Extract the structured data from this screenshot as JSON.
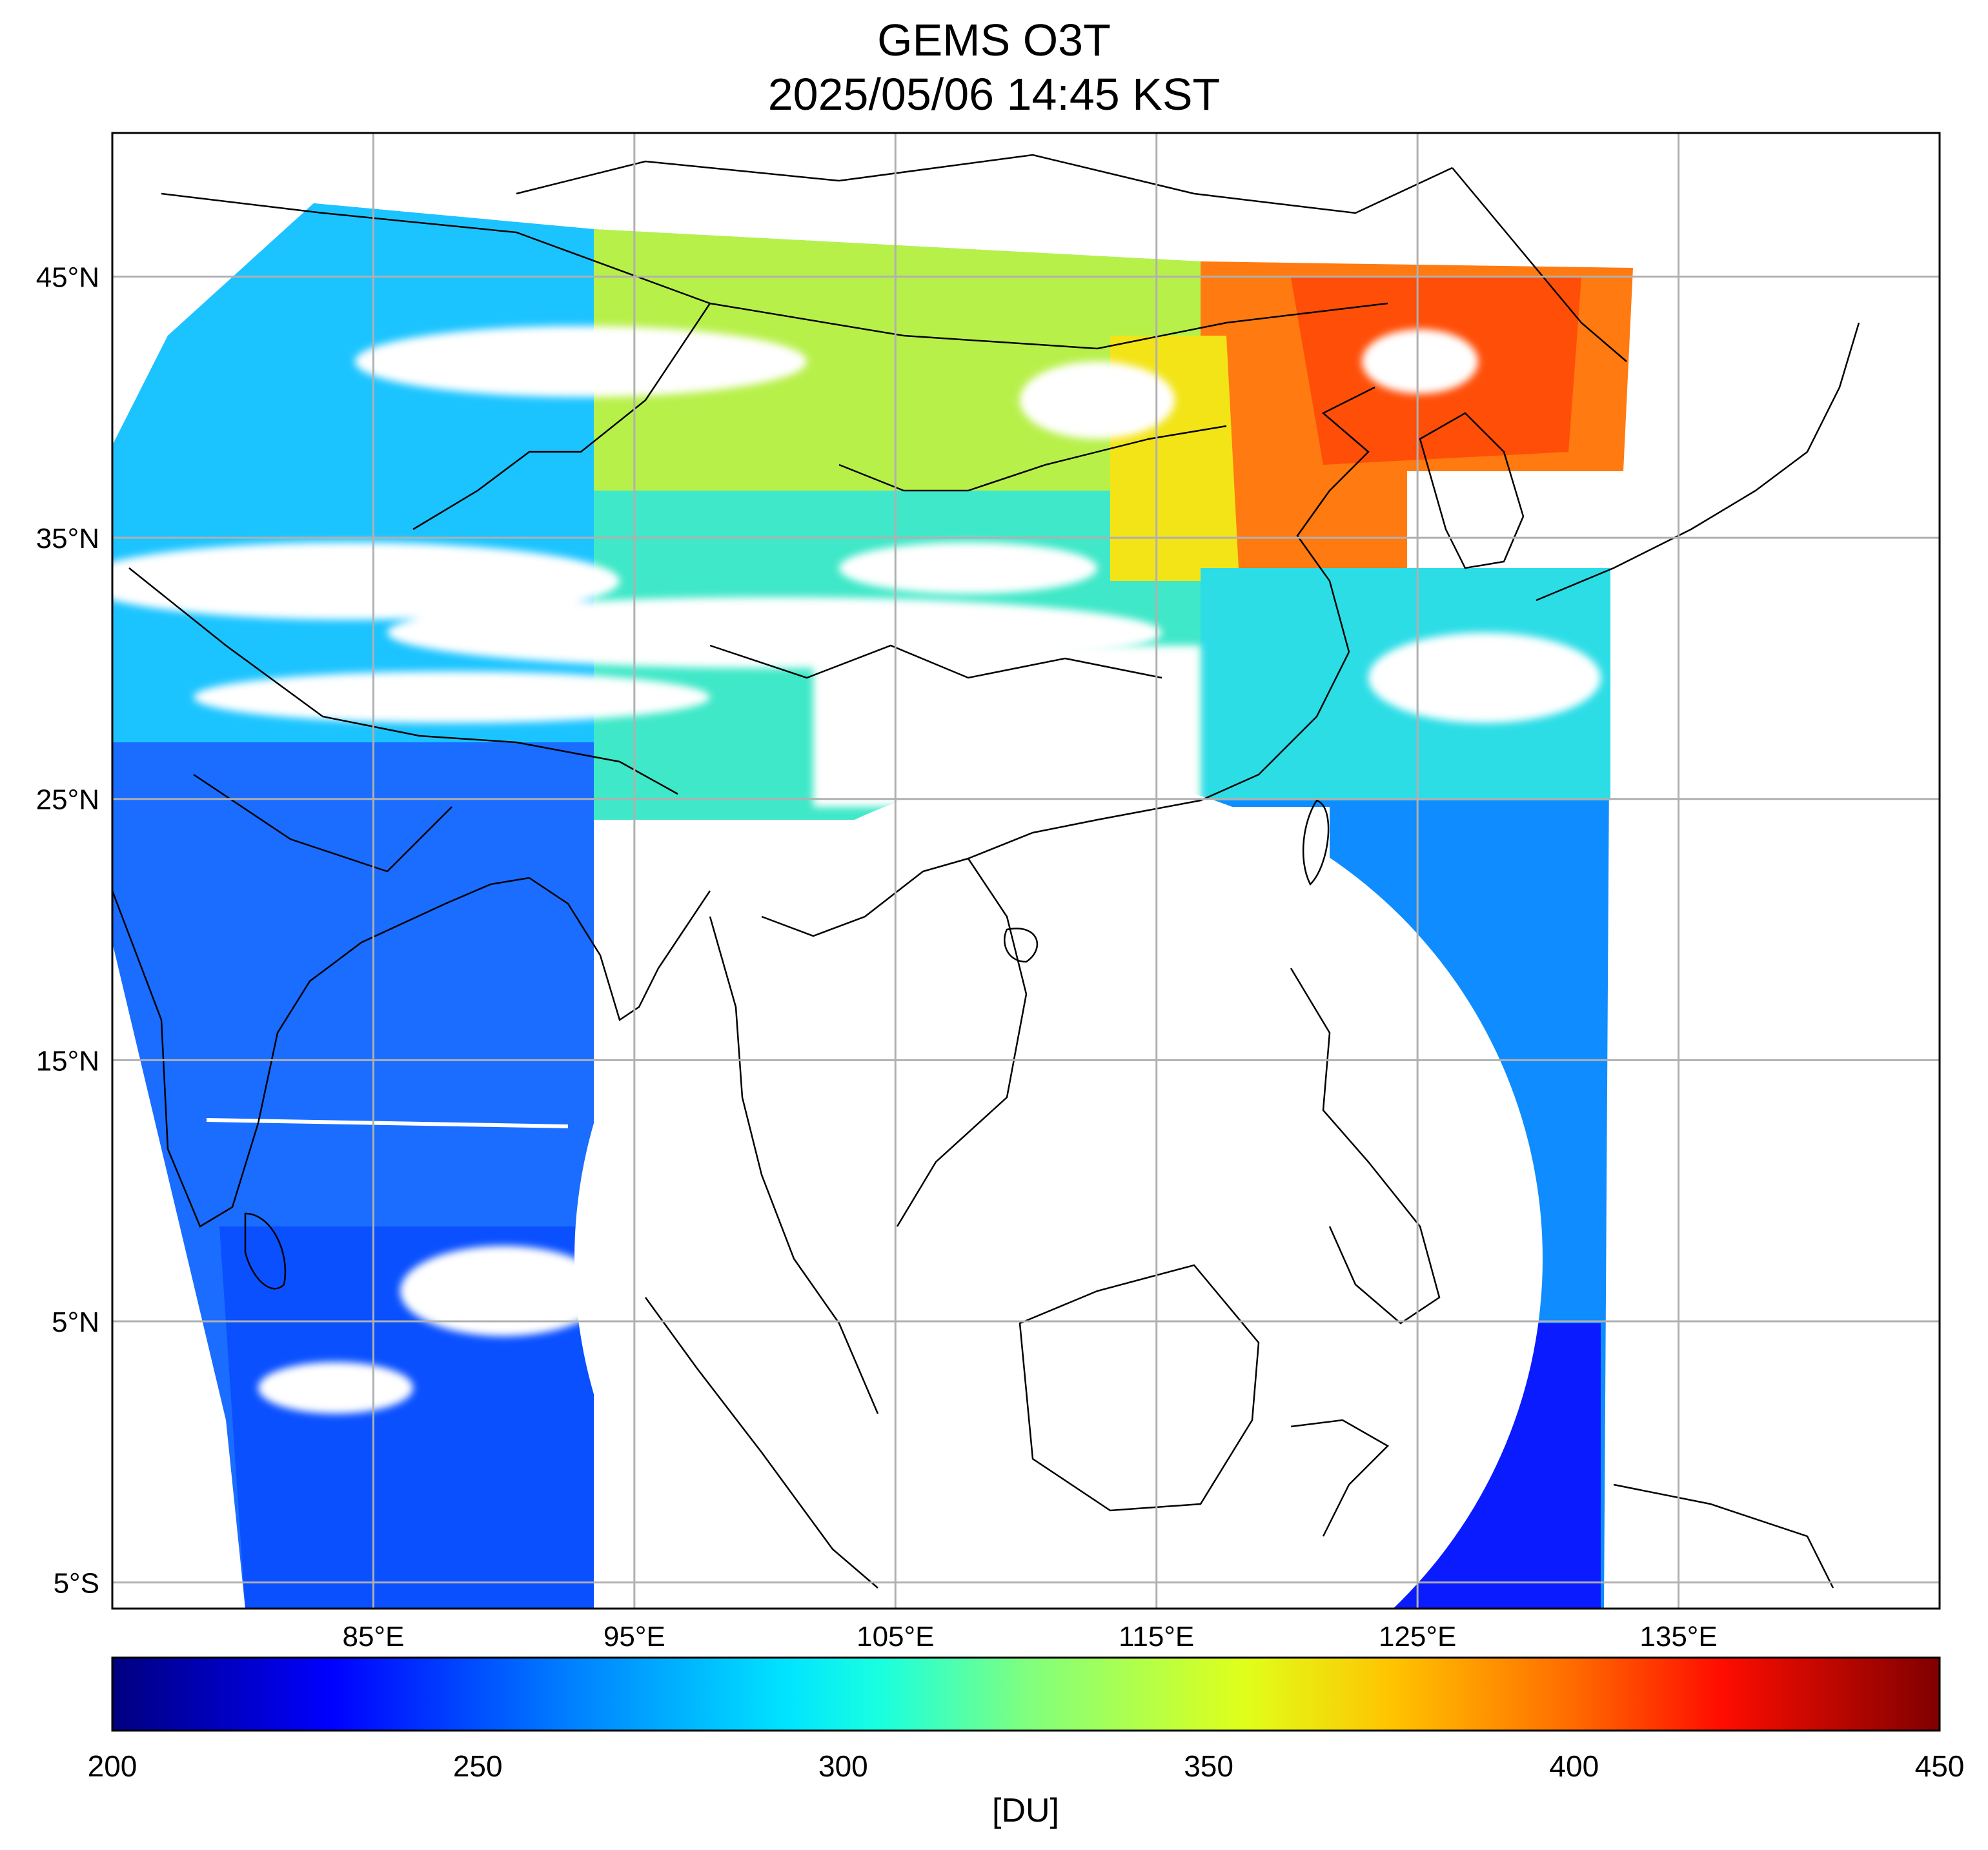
{
  "title": "GEMS O3T",
  "subtitle": "2025/05/06 14:45 KST",
  "colorbar": {
    "min": 200,
    "max": 450,
    "ticks": [
      "200",
      "250",
      "300",
      "350",
      "400",
      "450"
    ],
    "unit_label": "[DU]",
    "colormap": "jet",
    "stops": [
      "#00007f",
      "#0000ff",
      "#007fff",
      "#00e5ff",
      "#19ffe0",
      "#7fff7f",
      "#e0ff19",
      "#ffc400",
      "#ff6a00",
      "#ff0d00",
      "#7f0000"
    ]
  },
  "map": {
    "variable": "total ozone column",
    "lon_range": [
      75,
      145
    ],
    "lat_range": [
      -6,
      50.5
    ],
    "lon_ticks": [
      "85°E",
      "95°E",
      "105°E",
      "115°E",
      "125°E",
      "135°E"
    ],
    "lat_ticks": [
      "45°N",
      "35°N",
      "25°N",
      "15°N",
      "5°N",
      "5°S"
    ],
    "grid": true,
    "no_data_color": "#ffffff"
  }
}
